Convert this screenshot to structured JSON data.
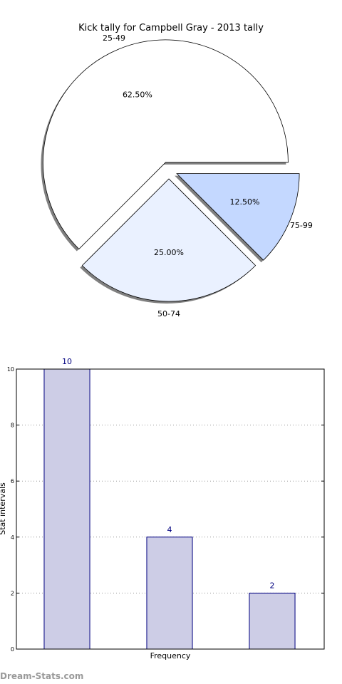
{
  "chart_data": [
    {
      "type": "pie",
      "title": "Kick tally for Campbell Gray - 2013 tally",
      "labels": [
        "25-49",
        "50-74",
        "75-99"
      ],
      "values": [
        62.5,
        25.0,
        12.5
      ],
      "percent_labels": [
        "62.50%",
        "25.00%",
        "12.50%"
      ],
      "colors": [
        "#ffffff",
        "#eaf1ff",
        "#c4d8ff"
      ],
      "exploded": true,
      "shadow": true
    },
    {
      "type": "bar",
      "categories": [
        "",
        "",
        ""
      ],
      "values": [
        10,
        4,
        2
      ],
      "value_labels": [
        "10",
        "4",
        "2"
      ],
      "xlabel": "Frequency",
      "ylabel": "Stat intervals",
      "ylim": [
        0,
        10
      ],
      "yticks": [
        "0",
        "2",
        "4",
        "6",
        "8",
        "10"
      ],
      "grid": true,
      "bar_color": "#cdcde6",
      "edge_color": "#000080"
    }
  ],
  "watermark": "Dream-Stats.com"
}
